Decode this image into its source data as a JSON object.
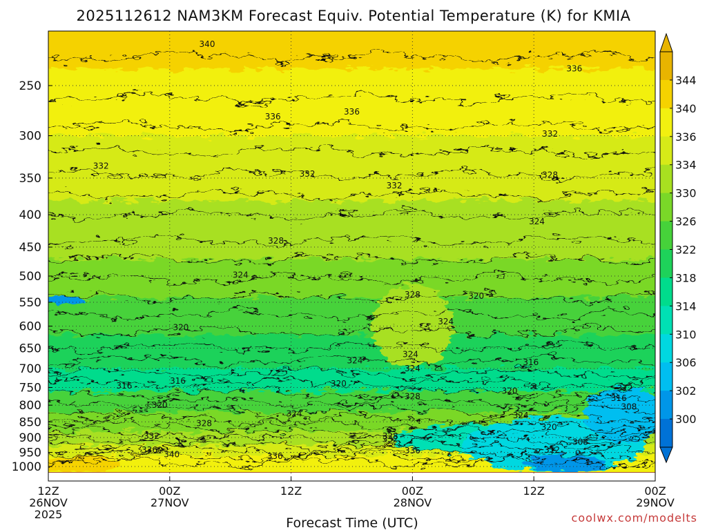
{
  "chart_data": {
    "type": "heatmap",
    "title": "2025112612 NAM3KM Forecast Equiv. Potential Temperature (K) for KMIA",
    "xlabel": "Forecast Time (UTC)",
    "ylabel": "",
    "credit": "coolwx.com/modelts",
    "x_ticks": [
      {
        "hours": 0,
        "line1": "12Z",
        "line2": "26NOV",
        "line3": "2025"
      },
      {
        "hours": 12,
        "line1": "00Z",
        "line2": "27NOV",
        "line3": ""
      },
      {
        "hours": 24,
        "line1": "12Z",
        "line2": "",
        "line3": ""
      },
      {
        "hours": 36,
        "line1": "00Z",
        "line2": "28NOV",
        "line3": ""
      },
      {
        "hours": 48,
        "line1": "12Z",
        "line2": "",
        "line3": ""
      },
      {
        "hours": 60,
        "line1": "00Z",
        "line2": "29NOV",
        "line3": ""
      }
    ],
    "xlim": [
      0,
      60
    ],
    "y_ticks": [
      "250",
      "300",
      "350",
      "400",
      "450",
      "500",
      "550",
      "600",
      "650",
      "700",
      "750",
      "800",
      "850",
      "900",
      "950",
      "1000"
    ],
    "ylim": [
      200,
      1025
    ],
    "colorbar": {
      "levels": [
        "300",
        "302",
        "306",
        "310",
        "314",
        "318",
        "322",
        "326",
        "330",
        "334",
        "336",
        "340",
        "344"
      ],
      "colors": [
        "#0072d6",
        "#0096e8",
        "#00bef0",
        "#00d8e0",
        "#00e0b4",
        "#00dc8c",
        "#1ed25a",
        "#46d23a",
        "#7ad828",
        "#a8e020",
        "#d6ea18",
        "#f2f010",
        "#f5d200",
        "#e8b400"
      ]
    },
    "contour_labels": [
      {
        "text": "340",
        "t": 15.7,
        "p": 215
      },
      {
        "text": "336",
        "t": 52.0,
        "p": 235
      },
      {
        "text": "336",
        "t": 22.2,
        "p": 280
      },
      {
        "text": "336",
        "t": 30.0,
        "p": 275
      },
      {
        "text": "332",
        "t": 49.6,
        "p": 298
      },
      {
        "text": "332",
        "t": 5.2,
        "p": 335
      },
      {
        "text": "332",
        "t": 25.6,
        "p": 345
      },
      {
        "text": "332",
        "t": 34.2,
        "p": 360
      },
      {
        "text": "328",
        "t": 49.6,
        "p": 346
      },
      {
        "text": "328",
        "t": 22.5,
        "p": 440
      },
      {
        "text": "324",
        "t": 48.3,
        "p": 410
      },
      {
        "text": "324",
        "t": 19.0,
        "p": 498
      },
      {
        "text": "328",
        "t": 36.0,
        "p": 535
      },
      {
        "text": "320",
        "t": 42.3,
        "p": 538
      },
      {
        "text": "324",
        "t": 39.3,
        "p": 590
      },
      {
        "text": "320",
        "t": 13.1,
        "p": 603
      },
      {
        "text": "324",
        "t": 35.8,
        "p": 665
      },
      {
        "text": "324",
        "t": 30.3,
        "p": 680
      },
      {
        "text": "324",
        "t": 36.0,
        "p": 700
      },
      {
        "text": "316",
        "t": 47.7,
        "p": 684
      },
      {
        "text": "316",
        "t": 12.8,
        "p": 732
      },
      {
        "text": "320",
        "t": 28.7,
        "p": 740
      },
      {
        "text": "316",
        "t": 7.5,
        "p": 745
      },
      {
        "text": "328",
        "t": 36.0,
        "p": 775
      },
      {
        "text": "320",
        "t": 45.6,
        "p": 760
      },
      {
        "text": "312",
        "t": 57.0,
        "p": 752
      },
      {
        "text": "316",
        "t": 56.4,
        "p": 780
      },
      {
        "text": "320",
        "t": 11.0,
        "p": 800
      },
      {
        "text": "308",
        "t": 57.4,
        "p": 805
      },
      {
        "text": "324",
        "t": 24.3,
        "p": 825
      },
      {
        "text": "324",
        "t": 46.7,
        "p": 830
      },
      {
        "text": "328",
        "t": 15.4,
        "p": 855
      },
      {
        "text": "320",
        "t": 49.5,
        "p": 867
      },
      {
        "text": "332",
        "t": 10.2,
        "p": 895
      },
      {
        "text": "328",
        "t": 33.8,
        "p": 895
      },
      {
        "text": "332",
        "t": 33.8,
        "p": 905
      },
      {
        "text": "308",
        "t": 52.6,
        "p": 915
      },
      {
        "text": "336",
        "t": 10.0,
        "p": 942
      },
      {
        "text": "336",
        "t": 36.0,
        "p": 944
      },
      {
        "text": "340",
        "t": 12.2,
        "p": 957
      },
      {
        "text": "336",
        "t": 22.4,
        "p": 963
      },
      {
        "text": "312",
        "t": 49.8,
        "p": 942
      }
    ]
  }
}
